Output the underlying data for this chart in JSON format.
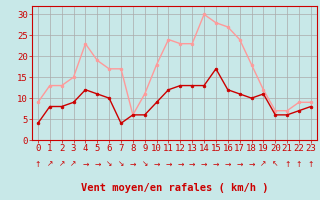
{
  "hours": [
    0,
    1,
    2,
    3,
    4,
    5,
    6,
    7,
    8,
    9,
    10,
    11,
    12,
    13,
    14,
    15,
    16,
    17,
    18,
    19,
    20,
    21,
    22,
    23
  ],
  "vent_moyen": [
    4,
    8,
    8,
    9,
    12,
    11,
    10,
    4,
    6,
    6,
    9,
    12,
    13,
    13,
    13,
    17,
    12,
    11,
    10,
    11,
    6,
    6,
    7,
    8
  ],
  "rafales": [
    9,
    13,
    13,
    15,
    23,
    19,
    17,
    17,
    6,
    11,
    18,
    24,
    23,
    23,
    30,
    28,
    27,
    24,
    18,
    12,
    7,
    7,
    9,
    9
  ],
  "color_moyen": "#cc0000",
  "color_rafales": "#ff9999",
  "bg_color": "#c8e8e8",
  "grid_color": "#aaaaaa",
  "xlabel": "Vent moyen/en rafales ( km/h )",
  "ylim": [
    0,
    32
  ],
  "yticks": [
    0,
    5,
    10,
    15,
    20,
    25,
    30
  ],
  "tick_fontsize": 6.5,
  "xlabel_fontsize": 7.5,
  "arrows": [
    "↑",
    "↗",
    "↗",
    "↗",
    "→",
    "→",
    "↘",
    "↘",
    "→",
    "↘",
    "→",
    "→",
    "→",
    "→",
    "→",
    "→",
    "→",
    "→",
    "→",
    "↗",
    "↖",
    "↑",
    "↑",
    "↑"
  ]
}
